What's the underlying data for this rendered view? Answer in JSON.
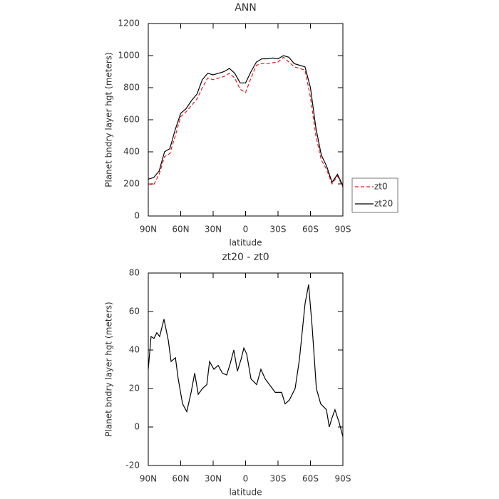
{
  "chart_data": [
    {
      "type": "line",
      "title": "ANN",
      "xlabel": "latitude",
      "ylabel": "Planet bndry layer hgt (meters)",
      "x": [
        90,
        85,
        80,
        75,
        70,
        65,
        60,
        55,
        50,
        45,
        40,
        35,
        30,
        25,
        20,
        15,
        10,
        5,
        0,
        -5,
        -10,
        -15,
        -20,
        -25,
        -30,
        -35,
        -40,
        -45,
        -50,
        -55,
        -60,
        -65,
        -70,
        -75,
        -80,
        -85,
        -90
      ],
      "series": [
        {
          "name": "zt0",
          "color": "#e41a1c",
          "dash": true,
          "values": [
            200,
            195,
            260,
            370,
            390,
            500,
            620,
            650,
            690,
            730,
            800,
            860,
            850,
            860,
            870,
            890,
            860,
            790,
            770,
            860,
            940,
            950,
            950,
            955,
            960,
            990,
            960,
            930,
            920,
            910,
            740,
            500,
            350,
            290,
            200,
            250,
            180
          ]
        },
        {
          "name": "zt20",
          "color": "#000000",
          "dash": false,
          "values": [
            230,
            240,
            280,
            400,
            420,
            540,
            640,
            670,
            720,
            760,
            850,
            890,
            880,
            890,
            900,
            920,
            890,
            830,
            830,
            900,
            960,
            980,
            980,
            985,
            980,
            1000,
            990,
            950,
            940,
            930,
            800,
            550,
            380,
            310,
            210,
            260,
            190
          ]
        }
      ],
      "xlim": [
        90,
        -90
      ],
      "ylim": [
        0,
        1200
      ],
      "xticks": [
        {
          "value": 90,
          "label": "90N"
        },
        {
          "value": 60,
          "label": "60N"
        },
        {
          "value": 30,
          "label": "30N"
        },
        0,
        {
          "value": -30,
          "label": "30S"
        },
        {
          "value": -60,
          "label": "60S"
        },
        {
          "value": -90,
          "label": "90S"
        }
      ],
      "yticks": [
        0,
        200,
        400,
        600,
        800,
        1000,
        1200
      ],
      "legend": "outside-right"
    },
    {
      "type": "line",
      "title": "zt20 - zt0",
      "xlabel": "latitude",
      "ylabel": "Planet bndry layer hgt (meters)",
      "x": [
        90,
        87.4,
        84.7,
        82.1,
        79.5,
        75.5,
        71.5,
        68.9,
        64.9,
        62.3,
        58.3,
        54.4,
        50.4,
        47.1,
        43.8,
        39.9,
        35.9,
        33.3,
        29.3,
        25.4,
        21.4,
        17.5,
        14.2,
        10.9,
        7.6,
        4.3,
        1.6,
        -1,
        -5,
        -10.2,
        -14.2,
        -18.1,
        -22.1,
        -27.4,
        -33.3,
        -36.6,
        -40.5,
        -45.8,
        -49.8,
        -55,
        -58.3,
        -61.6,
        -65.5,
        -69.5,
        -74.8,
        -77.4,
        -80.1,
        -82.7,
        -86.7,
        -90
      ],
      "values": [
        30,
        47,
        46,
        49,
        47,
        56,
        45,
        34,
        36,
        25,
        12,
        8,
        18,
        28,
        17,
        20,
        22,
        34,
        30,
        32,
        28,
        27,
        33,
        40,
        29,
        35,
        41,
        38,
        25,
        22,
        30,
        25,
        22,
        18,
        18,
        12,
        14,
        20,
        35,
        64,
        74,
        52,
        20,
        12,
        9,
        0,
        5,
        9,
        2,
        -5
      ],
      "color": "#000000",
      "xlim": [
        90,
        -90
      ],
      "ylim": [
        -20,
        80
      ],
      "xticks": [
        {
          "value": 90,
          "label": "90N"
        },
        {
          "value": 60,
          "label": "60N"
        },
        {
          "value": 30,
          "label": "30N"
        },
        0,
        {
          "value": -30,
          "label": "30S"
        },
        {
          "value": -60,
          "label": "60S"
        },
        {
          "value": -90,
          "label": "90S"
        }
      ],
      "yticks": [
        -20,
        0,
        20,
        40,
        60,
        80
      ]
    }
  ]
}
